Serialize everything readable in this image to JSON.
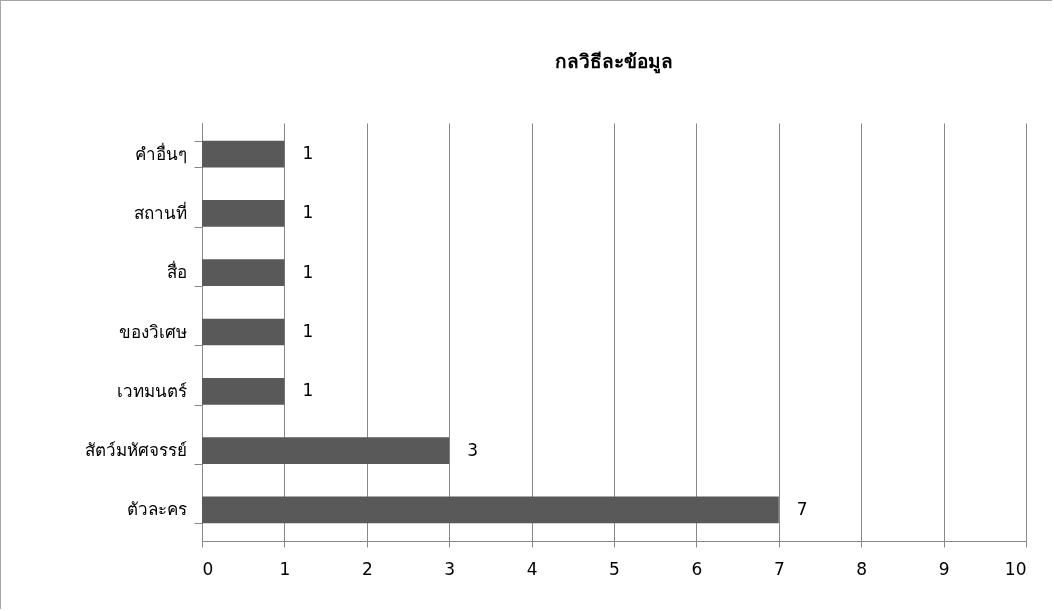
{
  "chart_data": {
    "type": "bar",
    "title": "กลวิธีละข้อมูล",
    "orientation": "horizontal",
    "categories": [
      "คำอื่นๆ",
      "สถานที่",
      "สื่อ",
      "ของวิเศษ",
      "เวทมนตร์",
      "สัตว์มหัศจรรย์",
      "ตัวละคร"
    ],
    "values": [
      1,
      1,
      1,
      1,
      1,
      3,
      7
    ],
    "color": "#595959",
    "xlim": [
      0,
      10
    ],
    "xticks": [
      0,
      1,
      2,
      3,
      4,
      5,
      6,
      7,
      8,
      9,
      10
    ],
    "grid": "x",
    "data_labels": true
  }
}
